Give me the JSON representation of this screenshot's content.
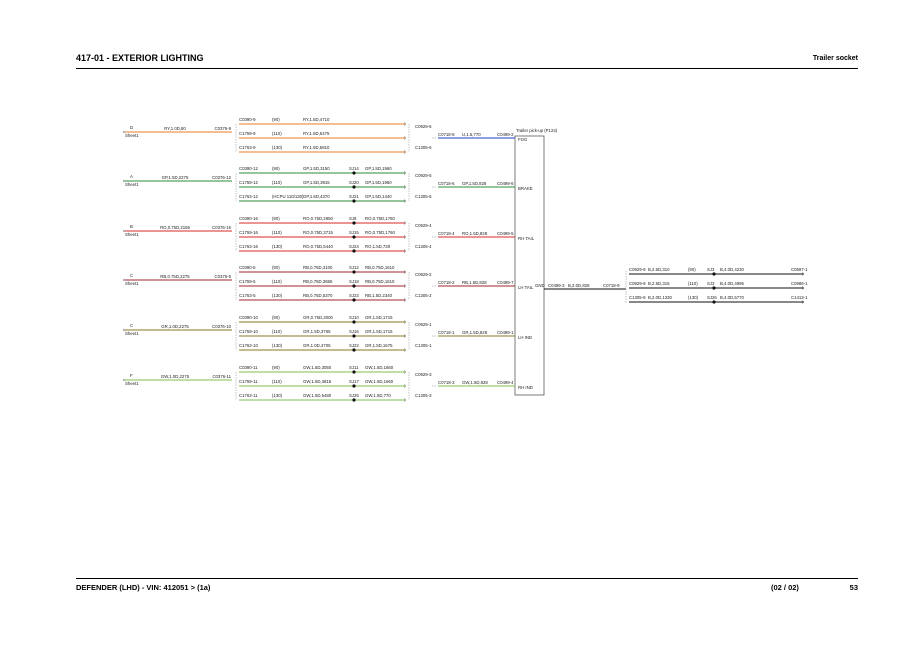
{
  "header": {
    "title": "417-01 - EXTERIOR LIGHTING",
    "subtitle": "Trailer socket"
  },
  "footer": {
    "vehicle": "DEFENDER  (LHD) - VIN: 412051 >  (1a)",
    "sheet": "(02 / 02)",
    "page": "53"
  },
  "module": {
    "title": "Trailer pick-up (P124)",
    "pins": [
      "FOG",
      "BRAKE",
      "RH TAIL",
      "LH TAIL",
      "GND",
      "LH IND",
      "RH IND"
    ]
  },
  "colors": {
    "RY": "#e87d2a",
    "GP": "#2e8b3a",
    "RO": "#d62828",
    "RB": "#a3262f",
    "GR": "#8a7a1e",
    "GW": "#7cc24a",
    "U": "#1a3cc8",
    "B": "#111111"
  },
  "groups": [
    {
      "letter": "D",
      "sheet": "Sheet1",
      "in_wire": "RY,1.0D,80",
      "in_conn": "C0376-9",
      "color": "RY",
      "rows": [
        {
          "conn": "C0390-9",
          "variant": "(90)",
          "wire": "RY,1.5D,4710",
          "splice": "",
          "wire2": ""
        },
        {
          "conn": "C1759-9",
          "variant": "(110)",
          "wire": "RY,1.5D,5475",
          "splice": "",
          "wire2": ""
        },
        {
          "conn": "C1763-9",
          "variant": "(130)",
          "wire": "RY,1.5D,5810",
          "splice": "",
          "wire2": ""
        }
      ],
      "out_top": "C0929-6",
      "out_bottom": "C1305-6",
      "out_conn": "C0718-8",
      "out_wire": "U,1.5,770",
      "out_color": "U",
      "pin_conn": "C0499-2",
      "pin": "FOG"
    },
    {
      "letter": "A",
      "sheet": "Sheet1",
      "in_wire": "GP,1.5D,2275",
      "in_conn": "C0376-12",
      "color": "GP",
      "rows": [
        {
          "conn": "C0390-12",
          "variant": "(90)",
          "wire": "GP,1.5D,3150",
          "splice": "SJ14",
          "wire2": "GP,1.5D,1960"
        },
        {
          "conn": "C1759-12",
          "variant": "(110)",
          "wire": "GP,1.5D,3915",
          "splice": "SJ20",
          "wire2": "GP,1.5D,1960"
        },
        {
          "conn": "C1763-12",
          "variant": "(HCPU 110/130)",
          "wire": "GP,1.5D,4370",
          "splice": "SJ21",
          "wire2": "GP,1.5D,1440"
        }
      ],
      "out_top": "C0929-5",
      "out_bottom": "C1305-5",
      "out_conn": "C0718-6",
      "out_wire": "GP,1.5D,828",
      "out_color": "GP",
      "pin_conn": "C0499-6",
      "pin": "BRAKE"
    },
    {
      "letter": "B",
      "sheet": "Sheet1",
      "in_wire": "RO,0.75D,2165",
      "in_conn": "C0376-16",
      "color": "RO",
      "rows": [
        {
          "conn": "C0390-16",
          "variant": "(90)",
          "wire": "RO,0.75D,2950",
          "splice": "SJ9",
          "wire2": "RO,0.75D,1760"
        },
        {
          "conn": "C1759-16",
          "variant": "(110)",
          "wire": "RO,0.75D,3715",
          "splice": "SJ15",
          "wire2": "RO,0.75D,1760"
        },
        {
          "conn": "C1763-16",
          "variant": "(130)",
          "wire": "RO,0.75D,5440",
          "splice": "SJ24",
          "wire2": "RO,1.5D,730"
        }
      ],
      "out_top": "C0929-4",
      "out_bottom": "C1305-4",
      "out_conn": "C0718-4",
      "out_wire": "RO,1.5D,828",
      "out_color": "RO",
      "pin_conn": "C0499-5",
      "pin": "RH TAIL"
    },
    {
      "letter": "C",
      "sheet": "Sheet1",
      "in_wire": "RB,0.75D,2275",
      "in_conn": "C0376-5",
      "color": "RB",
      "rows": [
        {
          "conn": "C0390-5",
          "variant": "(90)",
          "wire": "RB,0.75D,3100",
          "splice": "SJ12",
          "wire2": "RB,0.75D,1610"
        },
        {
          "conn": "C1759-5",
          "variant": "(110)",
          "wire": "RB,0.75D,3865",
          "splice": "SJ18",
          "wire2": "RB,0.75D,1610"
        },
        {
          "conn": "C1763-5",
          "variant": "(130)",
          "wire": "RB,0.75D,5370",
          "splice": "SJ23",
          "wire2": "RB,1.5D,2340"
        }
      ],
      "out_top": "C0929-2",
      "out_bottom": "C1305-2",
      "out_conn": "C0718-2",
      "out_wire": "RB,1.5D,828",
      "out_color": "RB",
      "pin_conn": "C0499-7",
      "pin": "LH TAIL"
    },
    {
      "letter": "C",
      "sheet": "Sheet1",
      "in_wire": "GR,1.0D,2275",
      "in_conn": "C0376-10",
      "color": "GR",
      "rows": [
        {
          "conn": "C0390-10",
          "variant": "(90)",
          "wire": "GR,0.75D,3000",
          "splice": "SJ10",
          "wire2": "GR,1.5D,1715"
        },
        {
          "conn": "C1759-10",
          "variant": "(110)",
          "wire": "GR,1.5D,3765",
          "splice": "SJ16",
          "wire2": "GR,1.5D,1715"
        },
        {
          "conn": "C1763-10",
          "variant": "(130)",
          "wire": "GR,1.0D,4705",
          "splice": "SJ22",
          "wire2": "GR,1.5D,1675"
        }
      ],
      "out_top": "C0929-1",
      "out_bottom": "C1305-1",
      "out_conn": "C0718-1",
      "out_wire": "GR,1.5D,828",
      "out_color": "GR",
      "pin_conn": "C0499-1",
      "pin": "LH IND"
    },
    {
      "letter": "F",
      "sheet": "Sheet1",
      "in_wire": "GW,1.0D,2275",
      "in_conn": "C0376-11",
      "color": "GW",
      "rows": [
        {
          "conn": "C0390-11",
          "variant": "(90)",
          "wire": "GW,1.5D,3050",
          "splice": "SJ11",
          "wire2": "GW,1.5D,1660"
        },
        {
          "conn": "C1759-11",
          "variant": "(110)",
          "wire": "GW,1.5D,3815",
          "splice": "SJ17",
          "wire2": "GW,1.5D,1660"
        },
        {
          "conn": "C1763-11",
          "variant": "(130)",
          "wire": "GW,1.5D,5480",
          "splice": "SJ25",
          "wire2": "GW,1.5D,770"
        }
      ],
      "out_top": "C0929-3",
      "out_bottom": "C1305-3",
      "out_conn": "C0718-3",
      "out_wire": "GW,1.5D,828",
      "out_color": "GW",
      "pin_conn": "C0499-4",
      "pin": "RH IND"
    }
  ],
  "ground": {
    "pin_conn": "C0499-3",
    "wire": "B,2.0D,828",
    "conn": "C0718-9",
    "rows": [
      {
        "conn": "C0929-9",
        "wire": "B,2.5D,310",
        "variant": "(90)",
        "splice": "SJ3",
        "wire2": "B,4.0D,4230",
        "end": "C0597-1"
      },
      {
        "conn": "C0929-9",
        "wire": "B,2.5D,315",
        "variant": "(110)",
        "splice": "SJ3",
        "wire2": "B,4.0D,4995",
        "end": "C0986-1"
      },
      {
        "conn": "C1305-9",
        "wire": "B,2.0D,1330",
        "variant": "(130)",
        "splice": "SJ26",
        "wire2": "B,4.0D,5770",
        "end": "C1413-1"
      }
    ]
  }
}
